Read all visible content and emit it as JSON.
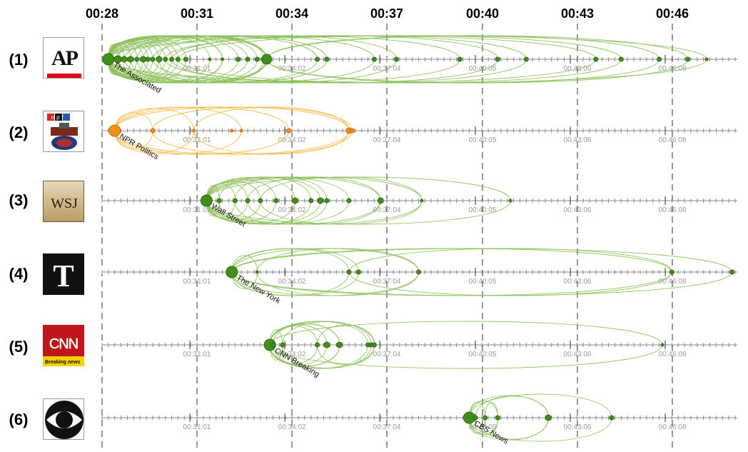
{
  "top_axis": {
    "ticks": [
      "00:28",
      "00:31",
      "00:34",
      "00:37",
      "00:40",
      "00:43",
      "00:46"
    ]
  },
  "colors": {
    "green_node": "#3f8f1a",
    "green_node_stroke": "#2d6a10",
    "green_arc": "#8cc05a",
    "orange_node": "#f39019",
    "orange_node_stroke": "#c06a00",
    "orange_arc": "#f6b73c",
    "axis": "#888888",
    "gridline": "#333333",
    "tick_label": "#9a9a9a"
  },
  "rows": [
    {
      "index_label": "(1)",
      "logo": "ap-logo",
      "logo_text": "AP",
      "source_label": "The Associated",
      "color": "green",
      "tick_labels": [
        "00:31:01",
        "00:34:02",
        "00:37:04",
        "00:40:05",
        "00:43:06",
        "00:46:08"
      ]
    },
    {
      "index_label": "(2)",
      "logo": "npr-logo",
      "logo_text": "npr",
      "source_label": "NPR Politics",
      "color": "orange",
      "tick_labels": [
        "00:31:01",
        "00:34:02",
        "00:37:04",
        "00:40:05",
        "00:43:06",
        "00:46:08"
      ]
    },
    {
      "index_label": "(3)",
      "logo": "wsj-logo",
      "logo_text": "WSJ",
      "source_label": "Wall Street",
      "color": "green",
      "tick_labels": [
        "00:31:01",
        "00:34:02",
        "00:37:04",
        "00:40:05",
        "00:43:06",
        "00:46:08"
      ]
    },
    {
      "index_label": "(4)",
      "logo": "nyt-logo",
      "logo_text": "T",
      "source_label": "The New York",
      "color": "green",
      "tick_labels": [
        "00:31:01",
        "00:34:02",
        "00:37:04",
        "00:40:05",
        "00:43:06",
        "00:46:08"
      ]
    },
    {
      "index_label": "(5)",
      "logo": "cnn-logo",
      "logo_text": "CNN",
      "logo_subtext": "Breaking news",
      "source_label": "CNN Breaking",
      "color": "green",
      "tick_labels": [
        "00:31:01",
        "00:34:02",
        "00:37:04",
        "00:40:05",
        "00:43:06",
        "00:46:08"
      ]
    },
    {
      "index_label": "(6)",
      "logo": "cbs-logo",
      "logo_text": "",
      "source_label": "CBS News",
      "color": "green",
      "tick_labels": [
        "00:31:01",
        "00:34:02",
        "00:37:04",
        "00:40:05",
        "00:43:06",
        "00:46:08"
      ]
    }
  ],
  "chart_data": {
    "type": "scatter",
    "x_unit": "minutes",
    "xlim": [
      28,
      47.9
    ],
    "series": [
      {
        "name": "The Associated",
        "points": [
          {
            "x": 28.2,
            "size": 8
          },
          {
            "x": 28.5,
            "size": 5
          },
          {
            "x": 28.7,
            "size": 4
          },
          {
            "x": 28.9,
            "size": 4
          },
          {
            "x": 29.1,
            "size": 3
          },
          {
            "x": 29.3,
            "size": 4
          },
          {
            "x": 29.45,
            "size": 3
          },
          {
            "x": 29.6,
            "size": 3
          },
          {
            "x": 29.8,
            "size": 4
          },
          {
            "x": 30.0,
            "size": 3
          },
          {
            "x": 30.2,
            "size": 3
          },
          {
            "x": 30.4,
            "size": 3
          },
          {
            "x": 30.65,
            "size": 3
          },
          {
            "x": 31.4,
            "size": 2
          },
          {
            "x": 31.8,
            "size": 2
          },
          {
            "x": 32.3,
            "size": 3
          },
          {
            "x": 32.6,
            "size": 3
          },
          {
            "x": 32.9,
            "size": 3
          },
          {
            "x": 33.1,
            "size": 3
          },
          {
            "x": 33.2,
            "size": 7
          },
          {
            "x": 34.8,
            "size": 3
          },
          {
            "x": 35.1,
            "size": 3
          },
          {
            "x": 36.6,
            "size": 3
          },
          {
            "x": 37.3,
            "size": 3
          },
          {
            "x": 39.3,
            "size": 3
          },
          {
            "x": 40.5,
            "size": 3
          },
          {
            "x": 41.4,
            "size": 3
          },
          {
            "x": 43.6,
            "size": 3
          },
          {
            "x": 44.4,
            "size": 3
          },
          {
            "x": 45.6,
            "size": 3
          },
          {
            "x": 46.5,
            "size": 3
          },
          {
            "x": 47.1,
            "size": 2
          }
        ],
        "arcs": [
          [
            28.2,
            28.5
          ],
          [
            28.2,
            28.7
          ],
          [
            28.2,
            28.9
          ],
          [
            28.2,
            29.1
          ],
          [
            28.2,
            29.3
          ],
          [
            28.2,
            29.45
          ],
          [
            28.2,
            29.6
          ],
          [
            28.2,
            29.8
          ],
          [
            28.2,
            30.0
          ],
          [
            28.2,
            30.2
          ],
          [
            28.2,
            30.4
          ],
          [
            28.2,
            30.65
          ],
          [
            28.2,
            31.4
          ],
          [
            28.2,
            31.8
          ],
          [
            28.2,
            32.3
          ],
          [
            28.2,
            32.6
          ],
          [
            28.2,
            33.2
          ],
          [
            28.2,
            34.8
          ],
          [
            28.2,
            36.6
          ],
          [
            28.2,
            39.3
          ],
          [
            28.2,
            43.6
          ],
          [
            28.2,
            47.1
          ],
          [
            28.5,
            33.2
          ],
          [
            28.7,
            35.1
          ],
          [
            28.9,
            32.9
          ],
          [
            29.3,
            33.2
          ],
          [
            29.6,
            37.3
          ],
          [
            29.8,
            33.1
          ],
          [
            30.2,
            40.5
          ],
          [
            30.4,
            44.4
          ],
          [
            30.0,
            41.4
          ],
          [
            33.2,
            46.5
          ],
          [
            33.2,
            45.6
          ],
          [
            29.1,
            33.2
          ],
          [
            28.5,
            31.8
          ]
        ]
      },
      {
        "name": "NPR Politics",
        "points": [
          {
            "x": 28.4,
            "size": 8
          },
          {
            "x": 29.6,
            "size": 3
          },
          {
            "x": 30.9,
            "size": 2
          },
          {
            "x": 32.1,
            "size": 2
          },
          {
            "x": 32.4,
            "size": 2
          },
          {
            "x": 33.9,
            "size": 3
          },
          {
            "x": 35.8,
            "size": 4
          },
          {
            "x": 35.9,
            "size": 3
          }
        ],
        "arcs": [
          [
            28.4,
            29.6
          ],
          [
            28.4,
            30.9
          ],
          [
            28.4,
            33.9
          ],
          [
            28.4,
            35.8
          ],
          [
            29.6,
            35.9
          ],
          [
            28.4,
            32.4
          ],
          [
            30.9,
            35.8
          ]
        ]
      },
      {
        "name": "Wall Street",
        "points": [
          {
            "x": 31.3,
            "size": 8
          },
          {
            "x": 31.7,
            "size": 3
          },
          {
            "x": 32.2,
            "size": 3
          },
          {
            "x": 32.6,
            "size": 3
          },
          {
            "x": 33.0,
            "size": 3
          },
          {
            "x": 33.5,
            "size": 3
          },
          {
            "x": 34.1,
            "size": 4
          },
          {
            "x": 34.6,
            "size": 3
          },
          {
            "x": 34.9,
            "size": 4
          },
          {
            "x": 35.1,
            "size": 3
          },
          {
            "x": 35.8,
            "size": 3
          },
          {
            "x": 36.8,
            "size": 4
          },
          {
            "x": 38.1,
            "size": 2
          },
          {
            "x": 40.9,
            "size": 2
          }
        ],
        "arcs": [
          [
            31.3,
            31.7
          ],
          [
            31.3,
            32.2
          ],
          [
            31.3,
            32.6
          ],
          [
            31.3,
            33.0
          ],
          [
            31.3,
            33.5
          ],
          [
            31.3,
            34.1
          ],
          [
            31.3,
            34.9
          ],
          [
            31.3,
            35.8
          ],
          [
            31.3,
            36.8
          ],
          [
            31.3,
            38.1
          ],
          [
            31.3,
            40.9
          ],
          [
            31.7,
            34.6
          ],
          [
            32.2,
            35.1
          ],
          [
            32.6,
            36.8
          ],
          [
            33.0,
            38.1
          ]
        ]
      },
      {
        "name": "The New York",
        "points": [
          {
            "x": 32.1,
            "size": 8
          },
          {
            "x": 32.9,
            "size": 2
          },
          {
            "x": 35.8,
            "size": 3
          },
          {
            "x": 36.1,
            "size": 3
          },
          {
            "x": 38.0,
            "size": 3
          },
          {
            "x": 46.0,
            "size": 3
          },
          {
            "x": 47.9,
            "size": 3
          }
        ],
        "arcs": [
          [
            32.1,
            32.9
          ],
          [
            32.1,
            35.8
          ],
          [
            32.1,
            36.1
          ],
          [
            32.1,
            38.0
          ],
          [
            32.1,
            46.0
          ],
          [
            32.1,
            47.9
          ],
          [
            32.9,
            38.0
          ],
          [
            35.8,
            46.0
          ]
        ]
      },
      {
        "name": "CNN Breaking",
        "points": [
          {
            "x": 33.3,
            "size": 8
          },
          {
            "x": 33.4,
            "size": 3
          },
          {
            "x": 33.7,
            "size": 3
          },
          {
            "x": 34.8,
            "size": 3
          },
          {
            "x": 35.1,
            "size": 4
          },
          {
            "x": 35.5,
            "size": 4
          },
          {
            "x": 36.4,
            "size": 3
          },
          {
            "x": 36.5,
            "size": 3
          },
          {
            "x": 36.6,
            "size": 3
          },
          {
            "x": 45.7,
            "size": 2
          }
        ],
        "arcs": [
          [
            33.3,
            33.7
          ],
          [
            33.3,
            34.8
          ],
          [
            33.3,
            35.1
          ],
          [
            33.3,
            35.5
          ],
          [
            33.3,
            36.4
          ],
          [
            33.3,
            36.6
          ],
          [
            33.3,
            45.7
          ],
          [
            33.7,
            36.5
          ],
          [
            34.8,
            36.6
          ],
          [
            33.4,
            35.5
          ]
        ]
      },
      {
        "name": "CBS News",
        "points": [
          {
            "x": 39.6,
            "size": 8
          },
          {
            "x": 39.8,
            "size": 3
          },
          {
            "x": 40.1,
            "size": 3
          },
          {
            "x": 40.5,
            "size": 3
          },
          {
            "x": 42.1,
            "size": 4
          },
          {
            "x": 44.1,
            "size": 3
          }
        ],
        "arcs": [
          [
            39.6,
            40.1
          ],
          [
            39.6,
            40.5
          ],
          [
            39.6,
            42.1
          ],
          [
            39.6,
            44.1
          ],
          [
            39.8,
            42.1
          ],
          [
            40.1,
            40.5
          ]
        ]
      }
    ]
  }
}
